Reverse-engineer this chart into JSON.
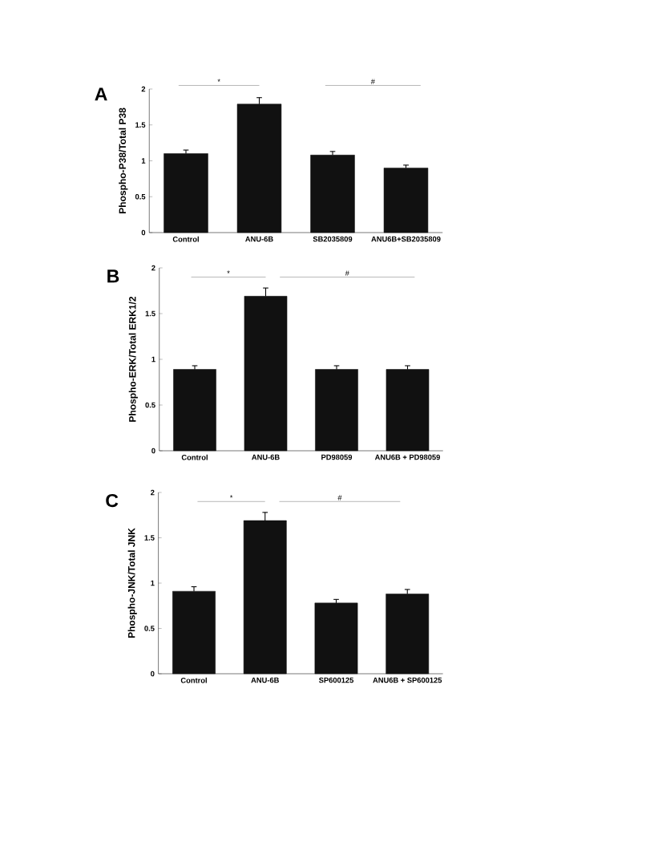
{
  "chart_data": [
    {
      "type": "bar",
      "title": "A",
      "ylabel": "Phospho-P38/Total P38",
      "categories": [
        "Control",
        "ANU-6B",
        "SB2035809",
        "ANU6B+SB2035809"
      ],
      "values": [
        1.1,
        1.79,
        1.08,
        0.9
      ],
      "errors": [
        0.05,
        0.09,
        0.05,
        0.04
      ],
      "color": "#111111",
      "ylim": [
        0,
        2
      ],
      "yticks": [
        0,
        0.5,
        1,
        1.5,
        2
      ],
      "annotations": [
        "*",
        "#"
      ]
    },
    {
      "type": "bar",
      "title": "B",
      "ylabel": "Phospho-ERK/Total ERK1/2",
      "categories": [
        "Control",
        "ANU-6B",
        "PD98059",
        "ANU6B + PD98059"
      ],
      "values": [
        0.89,
        1.69,
        0.89,
        0.89
      ],
      "errors": [
        0.04,
        0.09,
        0.04,
        0.04
      ],
      "color": "#111111",
      "ylim": [
        0,
        2
      ],
      "yticks": [
        0,
        0.5,
        1,
        1.5,
        2
      ],
      "annotations": [
        "*",
        "#"
      ]
    },
    {
      "type": "bar",
      "title": "C",
      "ylabel": "Phospho-JNK/Total JNK",
      "categories": [
        "Control",
        "ANU-6B",
        "SP600125",
        "ANU6B + SP600125"
      ],
      "values": [
        0.91,
        1.69,
        0.78,
        0.88
      ],
      "errors": [
        0.05,
        0.09,
        0.04,
        0.05
      ],
      "color": "#111111",
      "ylim": [
        0,
        2
      ],
      "yticks": [
        0,
        0.5,
        1,
        1.5,
        2
      ],
      "annotations": [
        "*",
        "#"
      ]
    }
  ]
}
